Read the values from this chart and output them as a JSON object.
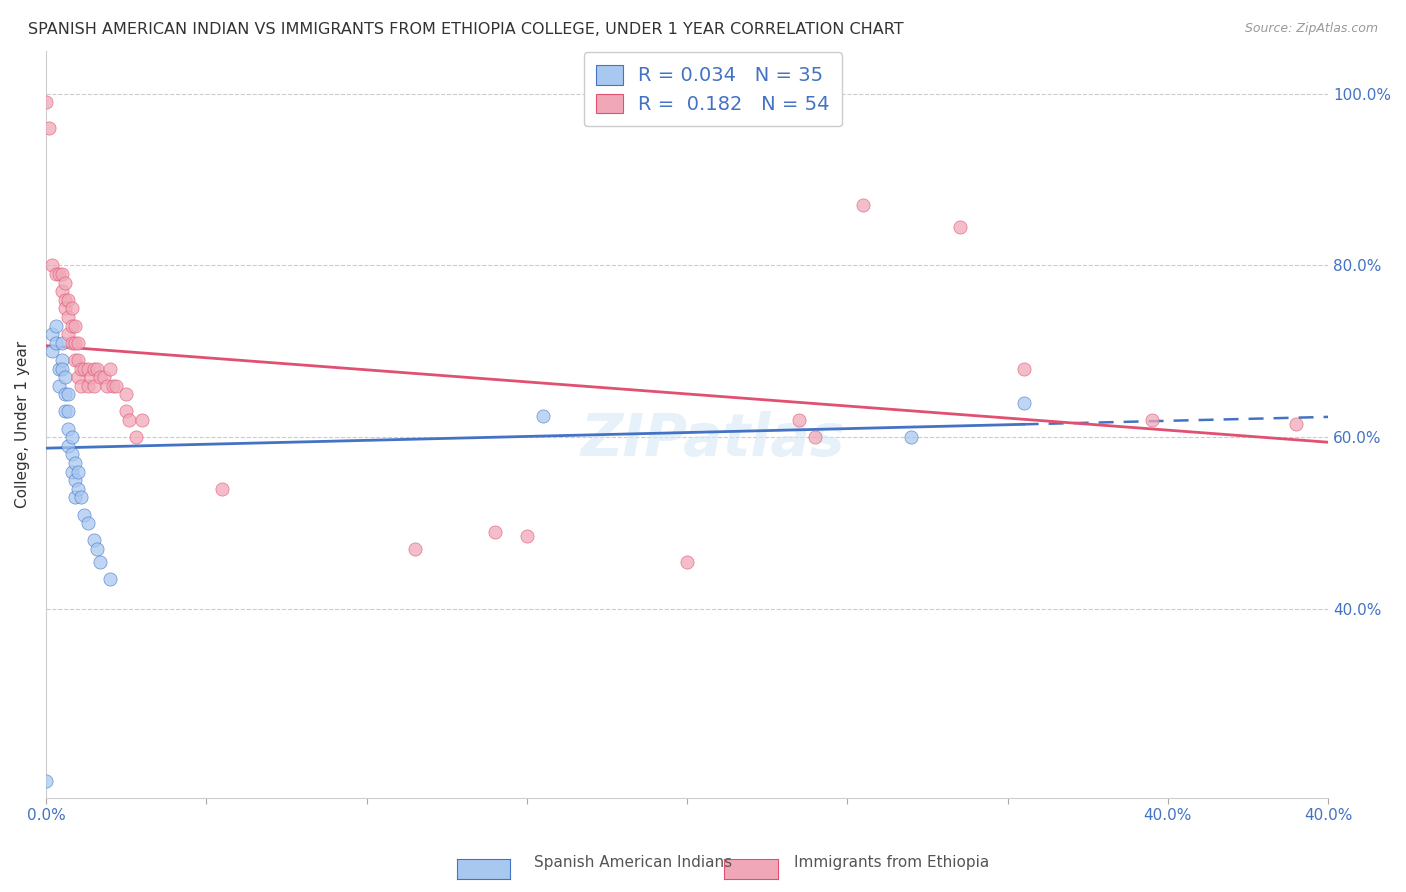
{
  "title": "SPANISH AMERICAN INDIAN VS IMMIGRANTS FROM ETHIOPIA COLLEGE, UNDER 1 YEAR CORRELATION CHART",
  "source": "Source: ZipAtlas.com",
  "ylabel": "College, Under 1 year",
  "legend_label1": "Spanish American Indians",
  "legend_label2": "Immigrants from Ethiopia",
  "R1": 0.034,
  "N1": 35,
  "R2": 0.182,
  "N2": 54,
  "color1": "#a8c8f0",
  "color2": "#f0a8b8",
  "trendline1_color": "#4472c4",
  "trendline2_color": "#e05070",
  "xmin": 0.0,
  "xmax": 0.4,
  "ymin": 0.18,
  "ymax": 1.05,
  "yticks": [
    0.4,
    0.6,
    0.8,
    1.0
  ],
  "ytick_labels": [
    "40.0%",
    "60.0%",
    "80.0%",
    "100.0%"
  ],
  "xtick_labels_show": {
    "0.0": "0.0%",
    "0.4": "40.0%"
  },
  "scatter1": [
    [
      0.0,
      0.2
    ],
    [
      0.002,
      0.72
    ],
    [
      0.002,
      0.7
    ],
    [
      0.003,
      0.73
    ],
    [
      0.003,
      0.71
    ],
    [
      0.004,
      0.68
    ],
    [
      0.004,
      0.66
    ],
    [
      0.005,
      0.71
    ],
    [
      0.005,
      0.69
    ],
    [
      0.005,
      0.68
    ],
    [
      0.006,
      0.67
    ],
    [
      0.006,
      0.65
    ],
    [
      0.006,
      0.63
    ],
    [
      0.007,
      0.65
    ],
    [
      0.007,
      0.63
    ],
    [
      0.007,
      0.61
    ],
    [
      0.007,
      0.59
    ],
    [
      0.008,
      0.6
    ],
    [
      0.008,
      0.58
    ],
    [
      0.008,
      0.56
    ],
    [
      0.009,
      0.57
    ],
    [
      0.009,
      0.55
    ],
    [
      0.009,
      0.53
    ],
    [
      0.01,
      0.56
    ],
    [
      0.01,
      0.54
    ],
    [
      0.011,
      0.53
    ],
    [
      0.012,
      0.51
    ],
    [
      0.013,
      0.5
    ],
    [
      0.015,
      0.48
    ],
    [
      0.016,
      0.47
    ],
    [
      0.017,
      0.455
    ],
    [
      0.02,
      0.435
    ],
    [
      0.155,
      0.625
    ],
    [
      0.27,
      0.6
    ],
    [
      0.305,
      0.64
    ]
  ],
  "scatter2": [
    [
      0.0,
      0.99
    ],
    [
      0.001,
      0.96
    ],
    [
      0.002,
      0.8
    ],
    [
      0.003,
      0.79
    ],
    [
      0.004,
      0.79
    ],
    [
      0.005,
      0.79
    ],
    [
      0.005,
      0.77
    ],
    [
      0.006,
      0.78
    ],
    [
      0.006,
      0.76
    ],
    [
      0.006,
      0.75
    ],
    [
      0.007,
      0.76
    ],
    [
      0.007,
      0.74
    ],
    [
      0.007,
      0.72
    ],
    [
      0.008,
      0.75
    ],
    [
      0.008,
      0.73
    ],
    [
      0.008,
      0.71
    ],
    [
      0.009,
      0.73
    ],
    [
      0.009,
      0.71
    ],
    [
      0.009,
      0.69
    ],
    [
      0.01,
      0.71
    ],
    [
      0.01,
      0.69
    ],
    [
      0.01,
      0.67
    ],
    [
      0.011,
      0.68
    ],
    [
      0.011,
      0.66
    ],
    [
      0.012,
      0.68
    ],
    [
      0.013,
      0.68
    ],
    [
      0.013,
      0.66
    ],
    [
      0.014,
      0.67
    ],
    [
      0.015,
      0.68
    ],
    [
      0.015,
      0.66
    ],
    [
      0.016,
      0.68
    ],
    [
      0.017,
      0.67
    ],
    [
      0.018,
      0.67
    ],
    [
      0.019,
      0.66
    ],
    [
      0.02,
      0.68
    ],
    [
      0.021,
      0.66
    ],
    [
      0.022,
      0.66
    ],
    [
      0.025,
      0.65
    ],
    [
      0.025,
      0.63
    ],
    [
      0.026,
      0.62
    ],
    [
      0.028,
      0.6
    ],
    [
      0.03,
      0.62
    ],
    [
      0.055,
      0.54
    ],
    [
      0.115,
      0.47
    ],
    [
      0.14,
      0.49
    ],
    [
      0.15,
      0.485
    ],
    [
      0.2,
      0.455
    ],
    [
      0.235,
      0.62
    ],
    [
      0.24,
      0.6
    ],
    [
      0.255,
      0.87
    ],
    [
      0.285,
      0.845
    ],
    [
      0.305,
      0.68
    ],
    [
      0.345,
      0.62
    ],
    [
      0.39,
      0.615
    ]
  ]
}
